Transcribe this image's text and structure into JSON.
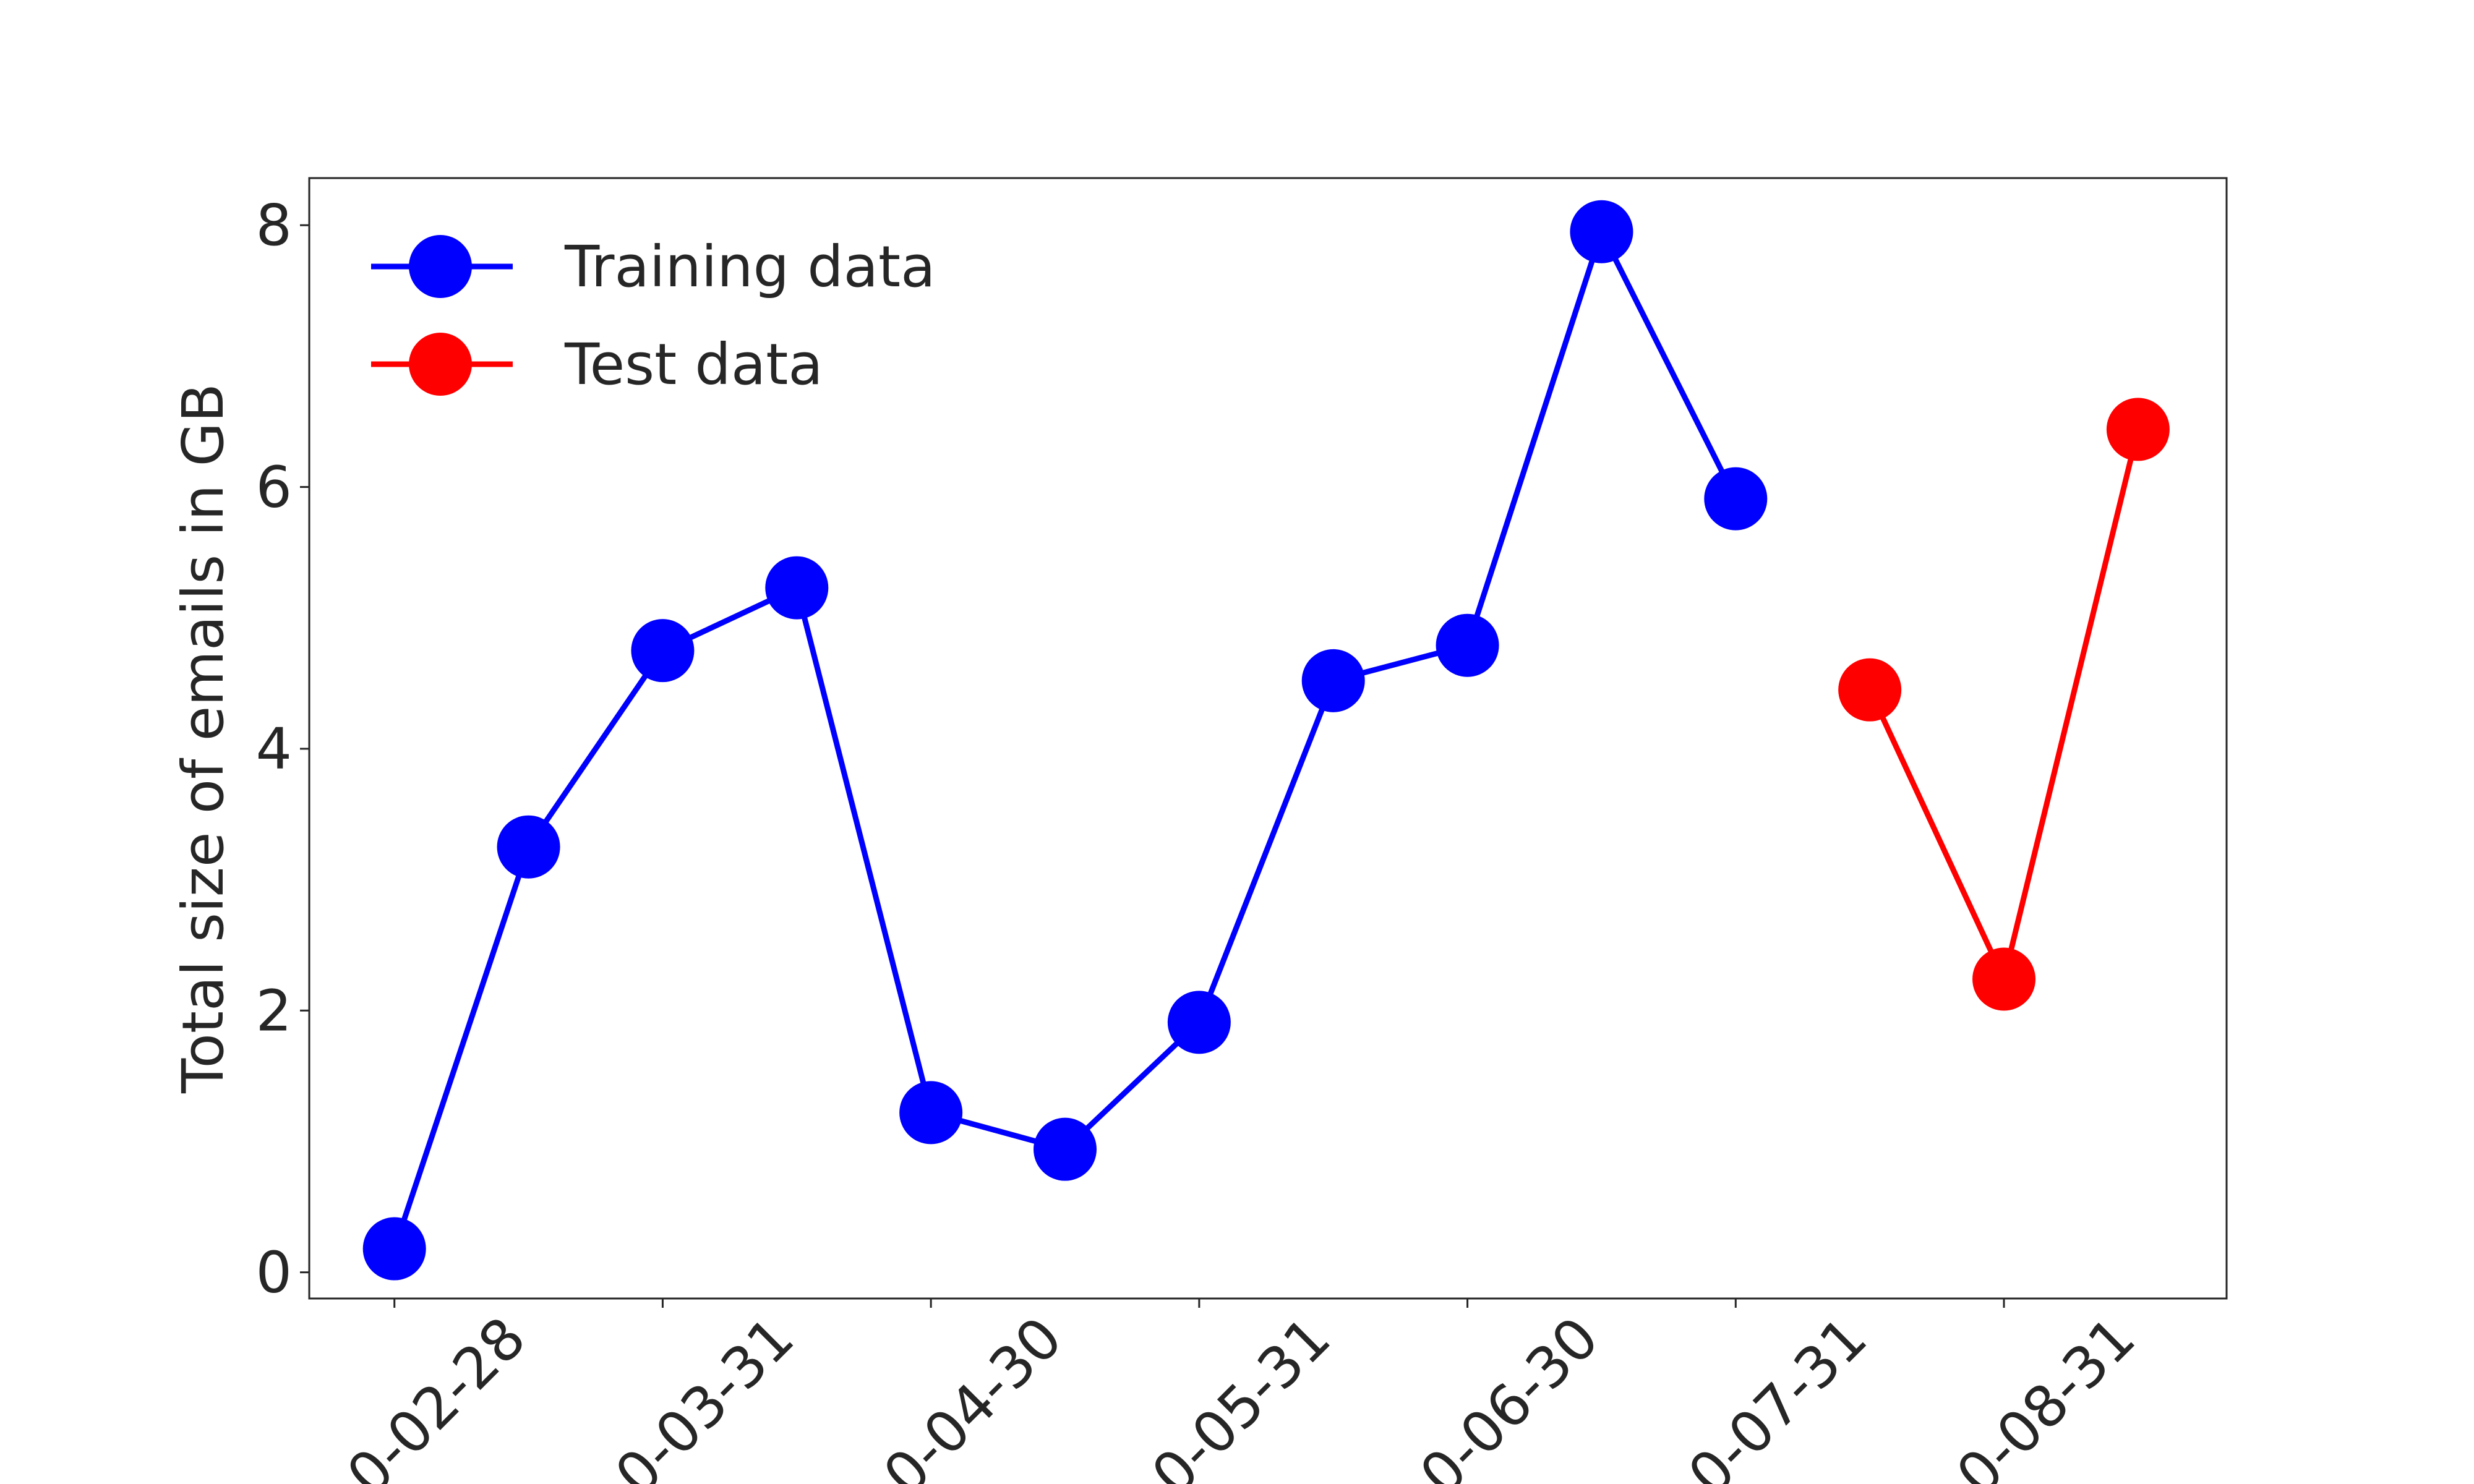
{
  "chart_data": {
    "type": "line",
    "ylabel": "Total size of emails in GB",
    "categories": [
      "0-02-28",
      null,
      "0-03-31",
      null,
      "0-04-30",
      null,
      "0-05-31",
      null,
      "0-06-30",
      null,
      "0-07-31",
      null,
      "0-08-31",
      null
    ],
    "series": [
      {
        "name": "Training data",
        "color": "#0000ff",
        "values": [
          0.18,
          3.25,
          4.75,
          5.23,
          1.22,
          0.94,
          1.91,
          4.52,
          4.79,
          7.95,
          5.91,
          null,
          null,
          null
        ]
      },
      {
        "name": "Test data",
        "color": "#ff0000",
        "values": [
          null,
          null,
          null,
          null,
          null,
          null,
          null,
          null,
          null,
          null,
          null,
          4.45,
          2.24,
          6.44
        ]
      }
    ],
    "ylim": [
      -0.2,
      8.36
    ],
    "yticks": [
      0,
      2,
      4,
      6,
      8
    ],
    "legend": "upper left",
    "grid": false
  }
}
